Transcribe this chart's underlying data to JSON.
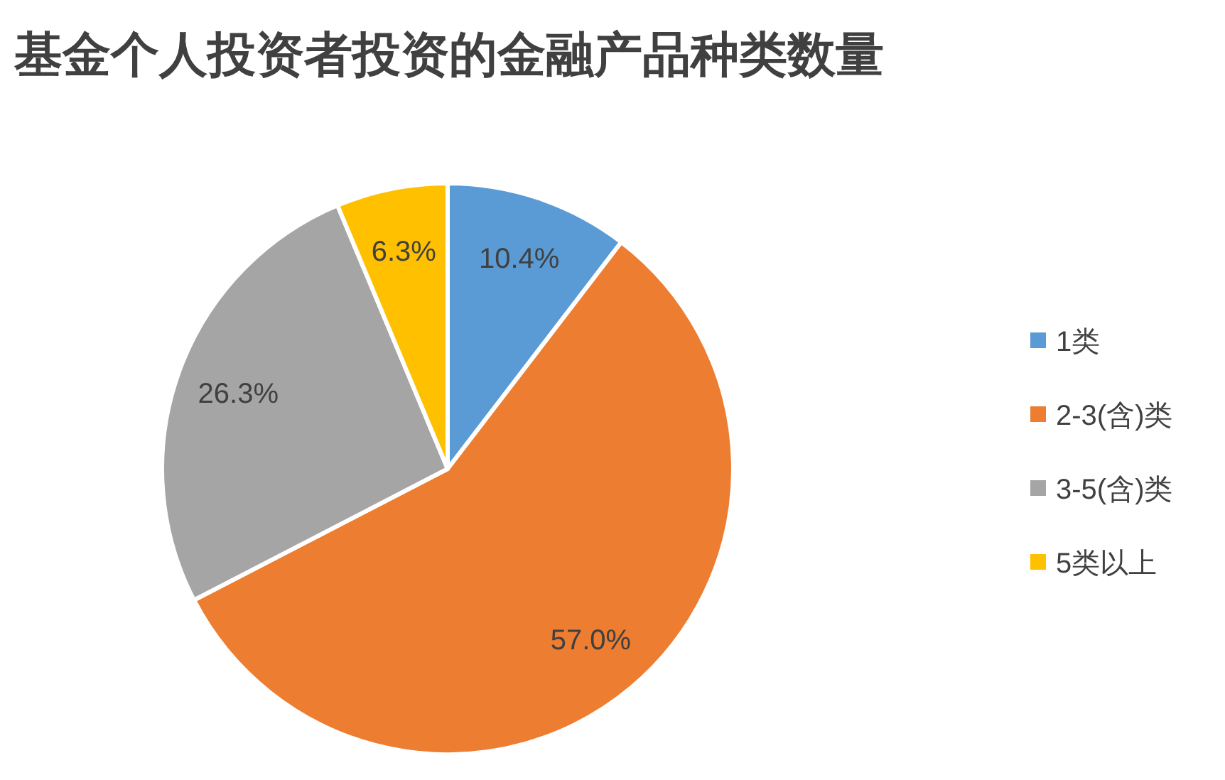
{
  "chart_data": {
    "type": "pie",
    "title": "基金个人投资者投资的金融产品种类数量",
    "categories": [
      "1类",
      "2-3(含)类",
      "3-5(含)类",
      "5类以上"
    ],
    "values": [
      10.4,
      57.0,
      26.3,
      6.3
    ],
    "value_labels": [
      "10.4%",
      "57.0%",
      "26.3%",
      "6.3%"
    ],
    "colors": [
      "#5b9bd5",
      "#ed7d31",
      "#a5a5a5",
      "#ffc000"
    ],
    "legend": "right"
  }
}
